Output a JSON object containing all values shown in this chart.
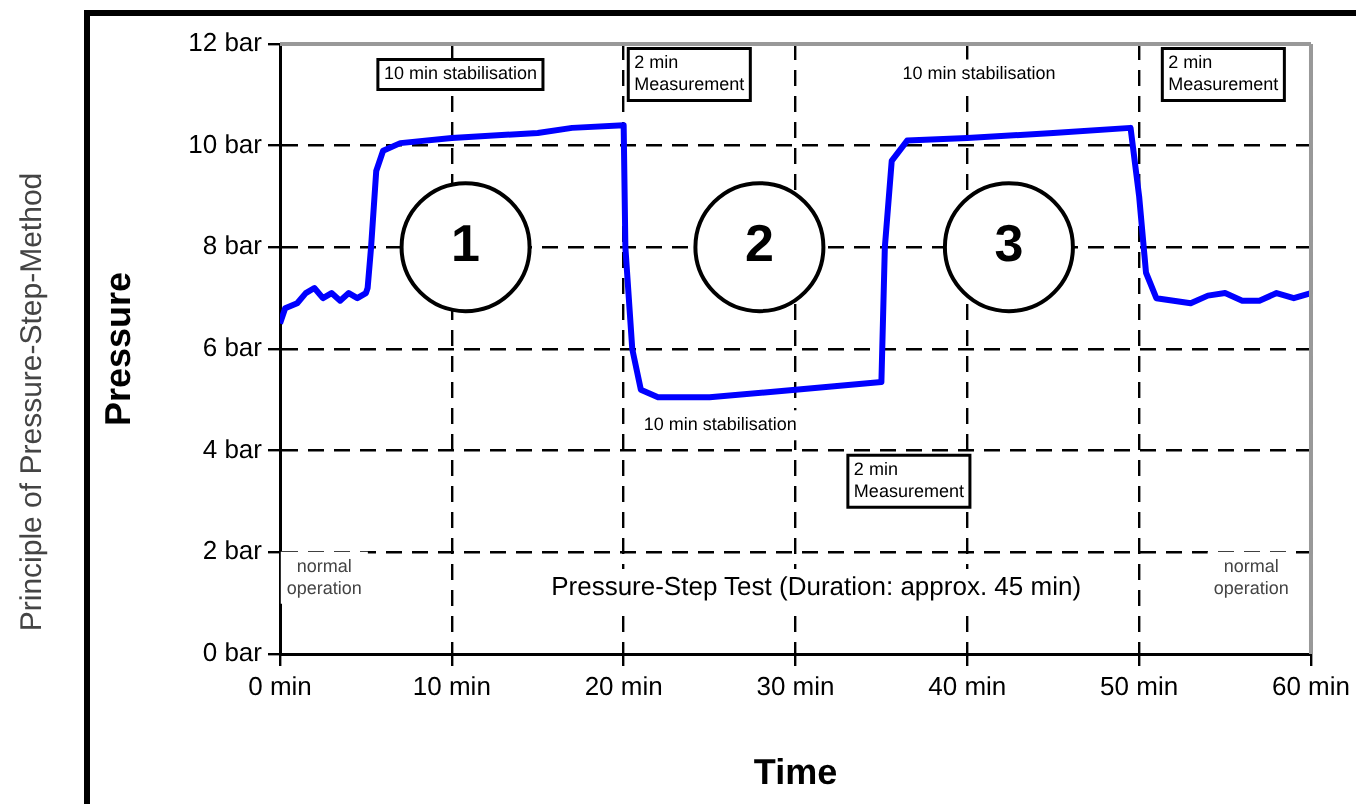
{
  "chart_data": {
    "type": "line",
    "title": "Principle of Pressure-Step-Method",
    "xlabel": "Time",
    "ylabel": "Pressure",
    "xlim": [
      0,
      60
    ],
    "ylim": [
      0,
      12
    ],
    "xticks": [
      {
        "value": 0,
        "label": "0 min"
      },
      {
        "value": 10,
        "label": "10 min"
      },
      {
        "value": 20,
        "label": "20 min"
      },
      {
        "value": 30,
        "label": "30 min"
      },
      {
        "value": 40,
        "label": "40 min"
      },
      {
        "value": 50,
        "label": "50 min"
      },
      {
        "value": 60,
        "label": "60 min"
      }
    ],
    "yticks": [
      {
        "value": 0,
        "label": "0 bar"
      },
      {
        "value": 2,
        "label": "2 bar"
      },
      {
        "value": 4,
        "label": "4 bar"
      },
      {
        "value": 6,
        "label": "6 bar"
      },
      {
        "value": 8,
        "label": "8 bar"
      },
      {
        "value": 10,
        "label": "10 bar"
      },
      {
        "value": 12,
        "label": "12 bar"
      }
    ],
    "grid": true,
    "marker": "none",
    "line_style": "solid",
    "series": [
      {
        "color": "#0000ff",
        "x": [
          0,
          0.3,
          1,
          1.5,
          2,
          2.5,
          3,
          3.5,
          4,
          4.5,
          5,
          5.1,
          5.3,
          5.6,
          6,
          7,
          10,
          15,
          17,
          20,
          20.1,
          20.5,
          21,
          22,
          25,
          30,
          35,
          35.2,
          35.6,
          36.5,
          40,
          45,
          49.5,
          50,
          50.4,
          51,
          52,
          53,
          54,
          55,
          56,
          57,
          58,
          59,
          60
        ],
        "values": [
          6.5,
          6.8,
          6.9,
          7.1,
          7.2,
          7.0,
          7.1,
          6.95,
          7.1,
          7.0,
          7.1,
          7.2,
          8.0,
          9.5,
          9.9,
          10.05,
          10.15,
          10.25,
          10.35,
          10.4,
          8.0,
          6.0,
          5.2,
          5.05,
          5.05,
          5.2,
          5.35,
          8.0,
          9.7,
          10.1,
          10.15,
          10.25,
          10.35,
          9.0,
          7.5,
          7.0,
          6.95,
          6.9,
          7.05,
          7.1,
          6.95,
          6.95,
          7.1,
          7.0,
          7.1
        ]
      }
    ],
    "annotations": [
      "10 min stabilisation",
      "2 min\nMeasurement",
      "1",
      "2",
      "3",
      "10 min stabilisation",
      "2 min\nMeasurement",
      "10 min stabilisation",
      "2 min\nMeasurement",
      "normal\noperation",
      "normal\noperation",
      "Pressure-Step Test (Duration: approx. 45 min)"
    ]
  }
}
